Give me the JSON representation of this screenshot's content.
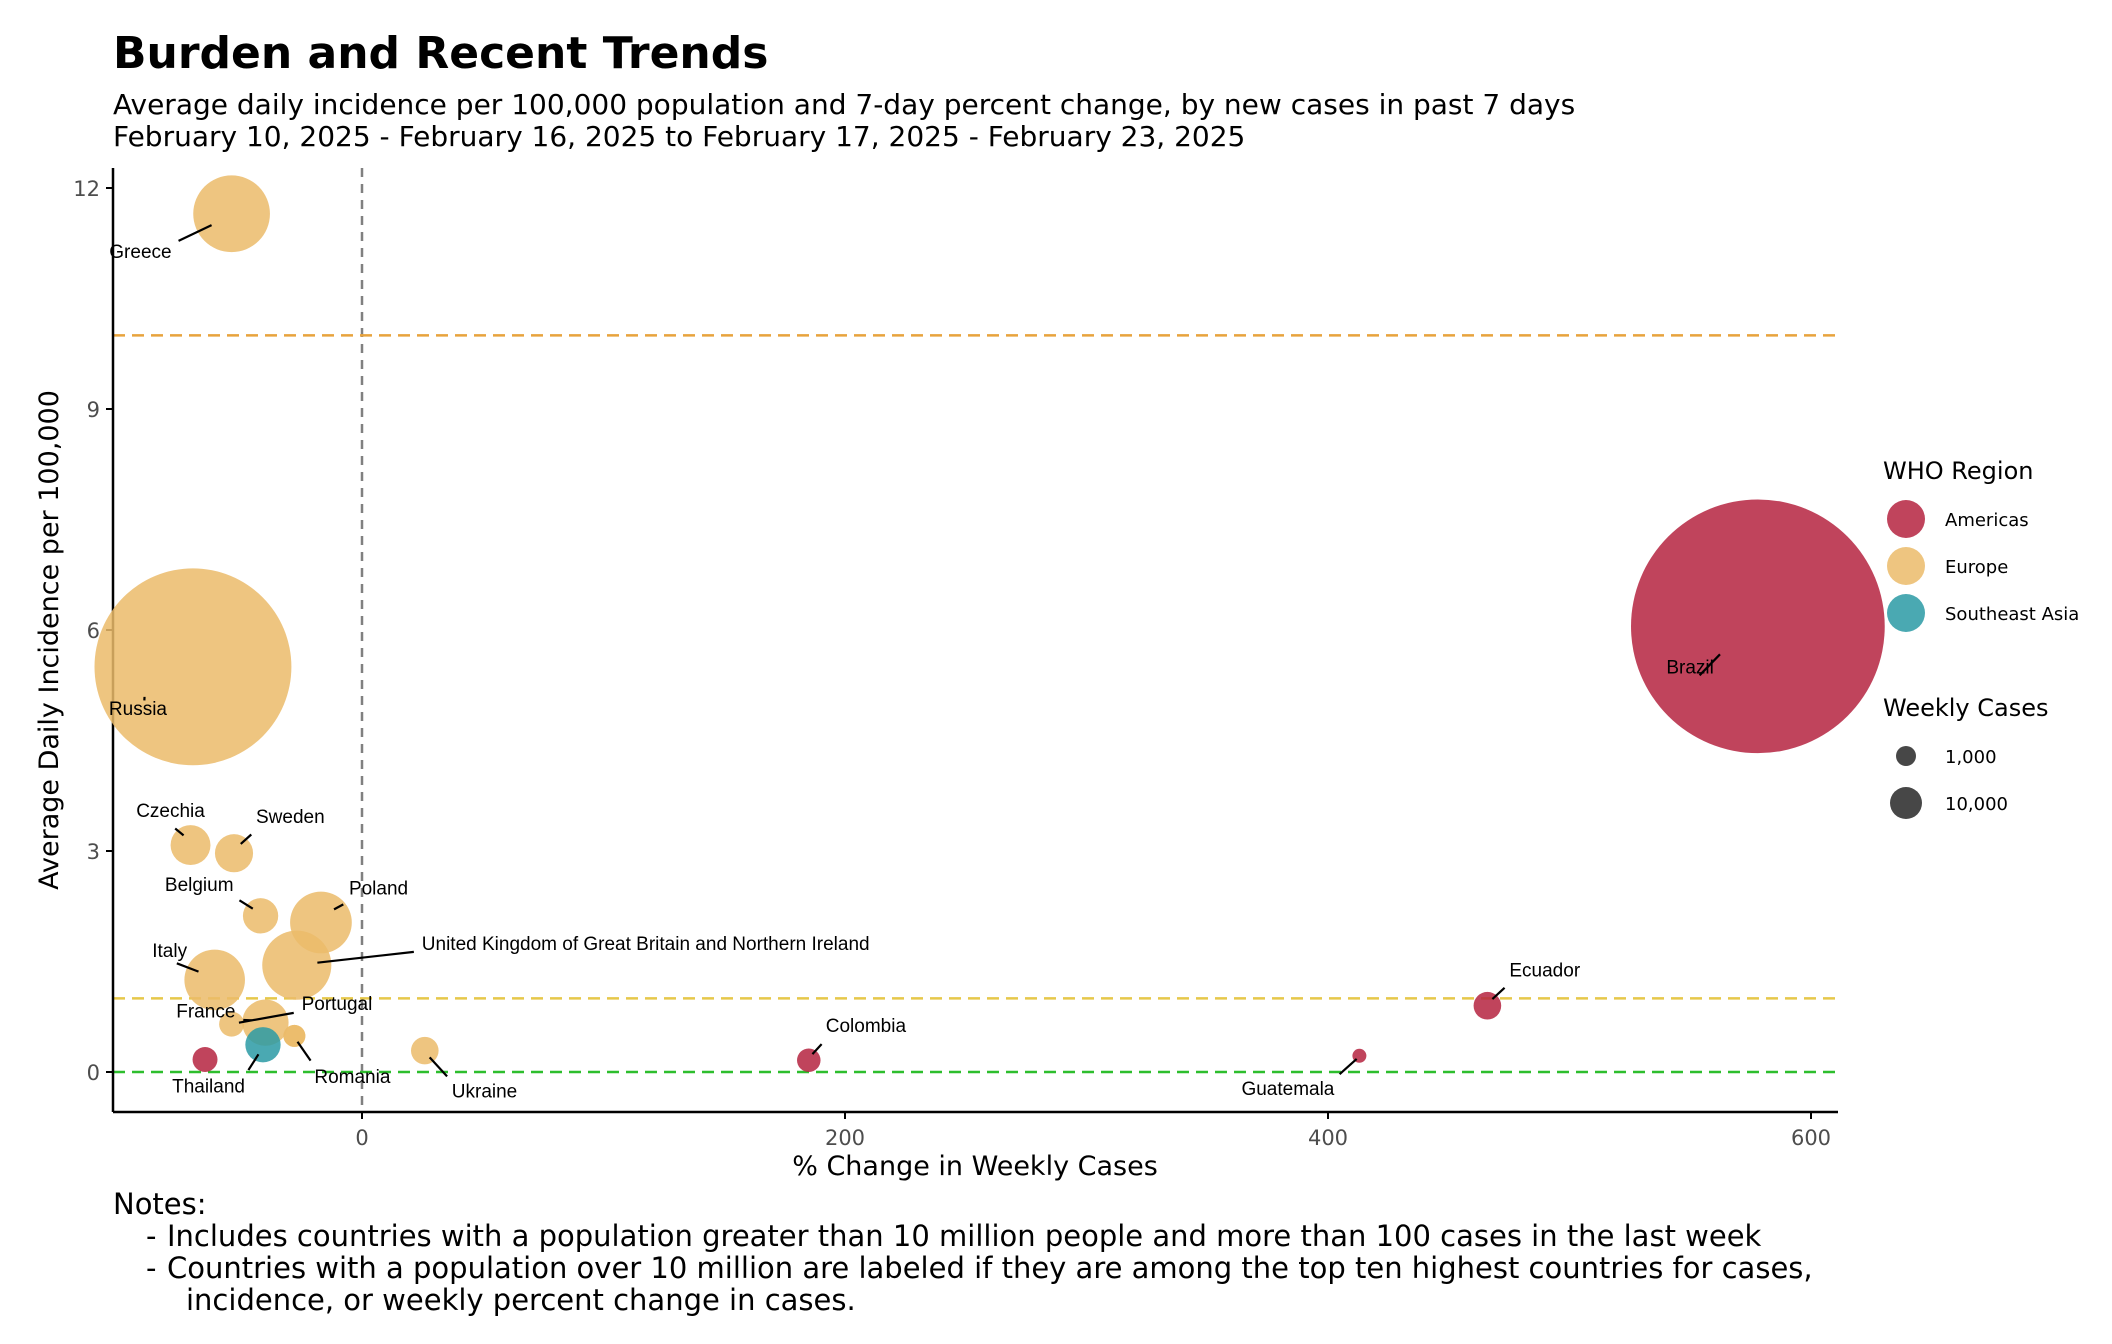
{
  "title": "Burden and Recent Trends",
  "subtitle_line1": "Average daily incidence per 100,000 population and 7-day percent change, by new cases in past 7 days",
  "subtitle_line2": "February 10, 2025 - February 16, 2025 to February 17, 2025 - February 23, 2025",
  "notes": {
    "heading": "Notes:",
    "bullet1": "Includes countries with a population greater than 10 million people and more than 100 cases in the last week",
    "bullet2": "Countries with a population over 10 million are labeled if they are among the top ten highest countries for cases,",
    "bullet2_cont": "incidence, or weekly percent change in cases.",
    "dash": "-"
  },
  "chart_data": {
    "type": "scatter",
    "xlabel": "% Change in Weekly Cases",
    "ylabel": "Average Daily Incidence per 100,000",
    "xlim": [
      -103,
      608
    ],
    "ylim": [
      -0.6,
      12.3
    ],
    "xticks": [
      0,
      200,
      400,
      600
    ],
    "yticks": [
      0,
      3,
      6,
      9,
      12
    ],
    "grid": false,
    "reference_lines": [
      {
        "axis": "x",
        "value": 0,
        "color": "#808080",
        "style": "dashed"
      },
      {
        "axis": "y",
        "value": 10,
        "color": "#E8A33D",
        "style": "dashed"
      },
      {
        "axis": "y",
        "value": 1,
        "color": "#E6C84A",
        "style": "dashed"
      },
      {
        "axis": "y",
        "value": 0,
        "color": "#2DBE2D",
        "style": "dashed"
      }
    ],
    "legend": {
      "placement": "right",
      "region_title": "WHO Region",
      "regions": [
        {
          "name": "Americas",
          "color": "#B5233F"
        },
        {
          "name": "Europe",
          "color": "#EBBB6A"
        },
        {
          "name": "Southeast Asia",
          "color": "#2A9AA5"
        }
      ],
      "size_title": "Weekly Cases",
      "sizes": [
        {
          "label": "1,000",
          "value": 1000
        },
        {
          "label": "10,000",
          "value": 10000
        }
      ]
    },
    "points": [
      {
        "label": "Greece",
        "region": "Europe",
        "x": -54,
        "y": 11.65,
        "cases": 8500
      },
      {
        "label": "Russia",
        "region": "Europe",
        "x": -70,
        "y": 5.5,
        "cases": 56000
      },
      {
        "label": "Czechia",
        "region": "Europe",
        "x": -71,
        "y": 3.08,
        "cases": 2300
      },
      {
        "label": "Sweden",
        "region": "Europe",
        "x": -53,
        "y": 2.97,
        "cases": 2100
      },
      {
        "label": "Belgium",
        "region": "Europe",
        "x": -42,
        "y": 2.12,
        "cases": 1800
      },
      {
        "label": "Poland",
        "region": "Europe",
        "x": -17,
        "y": 2.03,
        "cases": 5500
      },
      {
        "label": "United Kingdom of Great Britain and Northern Ireland",
        "region": "Europe",
        "x": -27,
        "y": 1.45,
        "cases": 6900
      },
      {
        "label": "Italy",
        "region": "Europe",
        "x": -61,
        "y": 1.25,
        "cases": 5300
      },
      {
        "label": "France",
        "region": "Europe",
        "x": -40,
        "y": 0.67,
        "cases": 3100
      },
      {
        "label": "Portugal",
        "region": "Europe",
        "x": -54,
        "y": 0.65,
        "cases": 900
      },
      {
        "label": "",
        "region": "Europe",
        "x": -28,
        "y": 0.49,
        "cases": 700
      },
      {
        "label": "Romania",
        "region": "Europe",
        "x": -28,
        "y": 0.49,
        "cases": 700
      },
      {
        "label": "Ukraine",
        "region": "Europe",
        "x": 26,
        "y": 0.29,
        "cases": 1100
      },
      {
        "label": "Thailand",
        "region": "Southeast Asia",
        "x": -41,
        "y": 0.37,
        "cases": 1800
      },
      {
        "label": "",
        "region": "Americas",
        "x": -65,
        "y": 0.17,
        "cases": 900
      },
      {
        "label": "Colombia",
        "region": "Americas",
        "x": 185,
        "y": 0.16,
        "cases": 800
      },
      {
        "label": "Guatemala",
        "region": "Americas",
        "x": 413,
        "y": 0.22,
        "cases": 250
      },
      {
        "label": "Ecuador",
        "region": "Americas",
        "x": 466,
        "y": 0.9,
        "cases": 1100
      },
      {
        "label": "Brazil",
        "region": "Americas",
        "x": 578,
        "y": 6.05,
        "cases": 93000
      }
    ]
  }
}
